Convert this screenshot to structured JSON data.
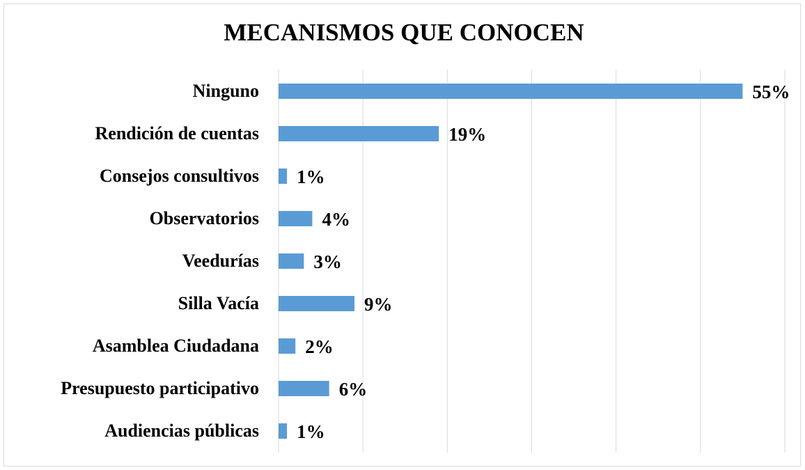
{
  "chart_data": {
    "type": "bar",
    "orientation": "horizontal",
    "title": "MECANISMOS QUE CONOCEN",
    "categories": [
      "Ninguno",
      "Rendición de cuentas",
      "Consejos consultivos",
      "Observatorios",
      "Veedurías",
      "Silla Vacía",
      "Asamblea Ciudadana",
      "Presupuesto participativo",
      "Audiencias públicas"
    ],
    "values": [
      55,
      19,
      1,
      4,
      3,
      9,
      2,
      6,
      1
    ],
    "value_labels": [
      "55%",
      "19%",
      "1%",
      "4%",
      "3%",
      "9%",
      "2%",
      "6%",
      "1%"
    ],
    "color": "#5b9bd5",
    "xlim": [
      0,
      60
    ],
    "xticks": [
      0,
      10,
      20,
      30,
      40,
      50,
      60
    ],
    "grid": true
  }
}
